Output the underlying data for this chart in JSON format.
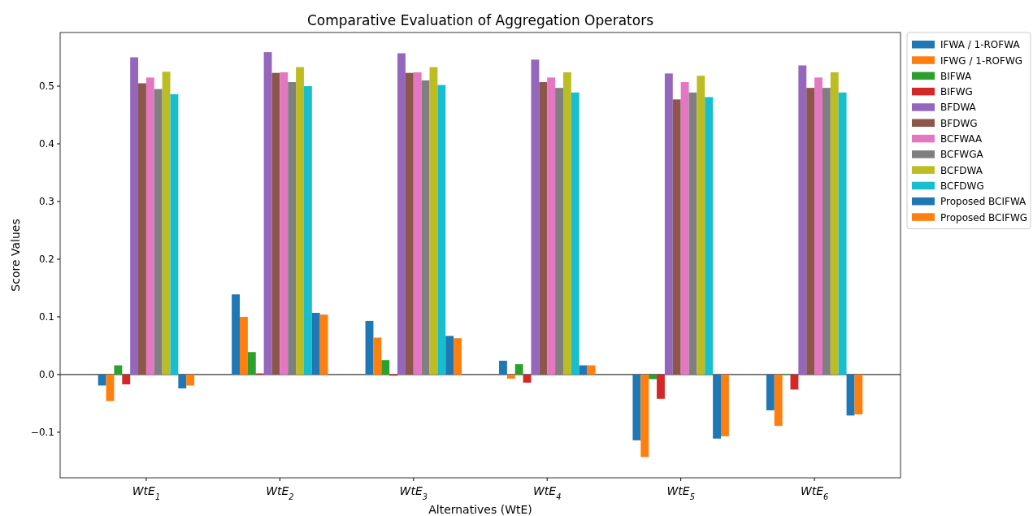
{
  "chart_data": {
    "type": "bar",
    "title": "Comparative Evaluation of Aggregation Operators",
    "xlabel": "Alternatives (WtE)",
    "ylabel": "Score Values",
    "categories": [
      "WtE$_{1}$",
      "WtE$_{2}$",
      "WtE$_{3}$",
      "WtE$_{4}$",
      "WtE$_{5}$",
      "WtE$_{6}$"
    ],
    "series": [
      {
        "name": "IFWA / 1-ROFWA",
        "color": "#1f77b4",
        "values": [
          -0.019,
          0.139,
          0.093,
          0.024,
          -0.114,
          -0.062
        ]
      },
      {
        "name": "IFWG / 1-ROFWG",
        "color": "#ff7f0e",
        "values": [
          -0.046,
          0.1,
          0.064,
          -0.007,
          -0.143,
          -0.089
        ]
      },
      {
        "name": "BIFWA",
        "color": "#2ca02c",
        "values": [
          0.016,
          0.039,
          0.025,
          0.018,
          -0.008,
          0.001
        ]
      },
      {
        "name": "BIFWG",
        "color": "#d62728",
        "values": [
          -0.017,
          0.002,
          -0.002,
          -0.014,
          -0.042,
          -0.026
        ]
      },
      {
        "name": "BFDWA",
        "color": "#9467bd",
        "values": [
          0.55,
          0.559,
          0.557,
          0.546,
          0.522,
          0.536
        ]
      },
      {
        "name": "BFDWG",
        "color": "#8c564b",
        "values": [
          0.505,
          0.523,
          0.523,
          0.507,
          0.477,
          0.497
        ]
      },
      {
        "name": "BCFWAA",
        "color": "#e377c2",
        "values": [
          0.515,
          0.524,
          0.524,
          0.515,
          0.507,
          0.515
        ]
      },
      {
        "name": "BCFWGA",
        "color": "#7f7f7f",
        "values": [
          0.495,
          0.507,
          0.51,
          0.497,
          0.489,
          0.497
        ]
      },
      {
        "name": "BCFDWA",
        "color": "#bcbd22",
        "values": [
          0.525,
          0.533,
          0.533,
          0.524,
          0.518,
          0.524
        ]
      },
      {
        "name": "BCFDWG",
        "color": "#17becf",
        "values": [
          0.486,
          0.5,
          0.502,
          0.489,
          0.481,
          0.489
        ]
      },
      {
        "name": "Proposed BCIFWA",
        "color": "#1f77b4",
        "values": [
          -0.024,
          0.107,
          0.067,
          0.016,
          -0.111,
          -0.071
        ]
      },
      {
        "name": "Proposed BCIFWG",
        "color": "#ff7f0e",
        "values": [
          -0.019,
          0.104,
          0.063,
          0.016,
          -0.107,
          -0.069
        ]
      }
    ],
    "ylim": [
      -0.179,
      0.593
    ],
    "yticks": [
      {
        "value": -0.1,
        "label": "−0.1"
      },
      {
        "value": 0,
        "label": "0.0"
      },
      {
        "value": 0.1,
        "label": "0.1"
      },
      {
        "value": 0.2,
        "label": "0.2"
      },
      {
        "value": 0.3,
        "label": "0.3"
      },
      {
        "value": 0.4,
        "label": "0.4"
      },
      {
        "value": 0.5,
        "label": "0.5"
      }
    ],
    "ref_lines": [
      {
        "axis": "y",
        "value": 0,
        "color": "#000000"
      }
    ],
    "legend": "right"
  }
}
